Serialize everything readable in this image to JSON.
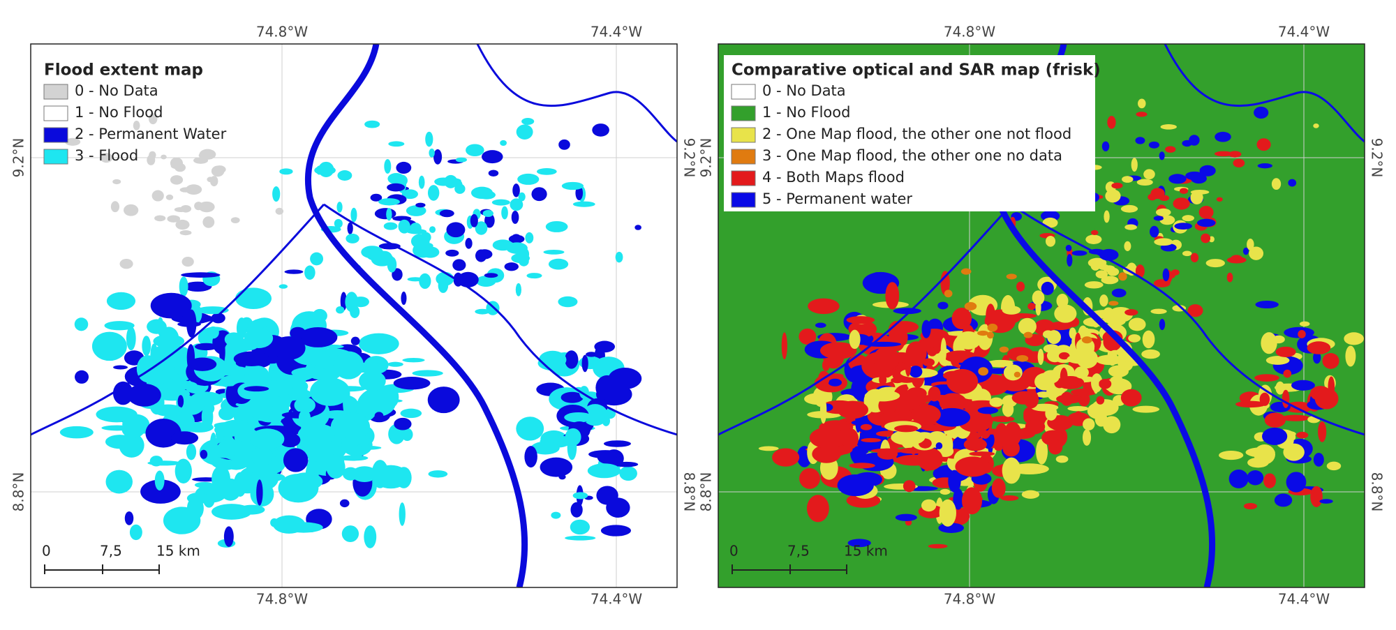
{
  "panels": [
    {
      "legend": {
        "title": "Flood extent map",
        "items": [
          {
            "label": "0 - No Data",
            "color": "#d3d3d3"
          },
          {
            "label": "1 - No Flood",
            "color": "#ffffff"
          },
          {
            "label": "2 - Permanent Water",
            "color": "#0a0adc"
          },
          {
            "label": "3 - Flood",
            "color": "#1ee6f0"
          }
        ]
      },
      "x_labels": [
        "74.8°W",
        "74.4°W"
      ],
      "y_labels": [
        "9.2°N",
        "8.8°N"
      ],
      "scale_bar": [
        "0",
        "7,5",
        "15 km"
      ]
    },
    {
      "legend": {
        "title": "Comparative optical and SAR map (frisk)",
        "items": [
          {
            "label": "0 - No Data",
            "color": "#ffffff"
          },
          {
            "label": "1 - No Flood",
            "color": "#33a02c"
          },
          {
            "label": "2 - One Map flood, the other one not flood",
            "color": "#e8e34a"
          },
          {
            "label": "3 - One Map flood, the other one no data",
            "color": "#e07b10"
          },
          {
            "label": "4 - Both Maps flood",
            "color": "#e31a1c"
          },
          {
            "label": "5 - Permanent water",
            "color": "#0a0ae6"
          }
        ]
      },
      "x_labels": [
        "74.8°W",
        "74.4°W"
      ],
      "y_labels": [
        "9.2°N",
        "8.8°N"
      ],
      "scale_bar": [
        "0",
        "7,5",
        "15 km"
      ]
    }
  ]
}
